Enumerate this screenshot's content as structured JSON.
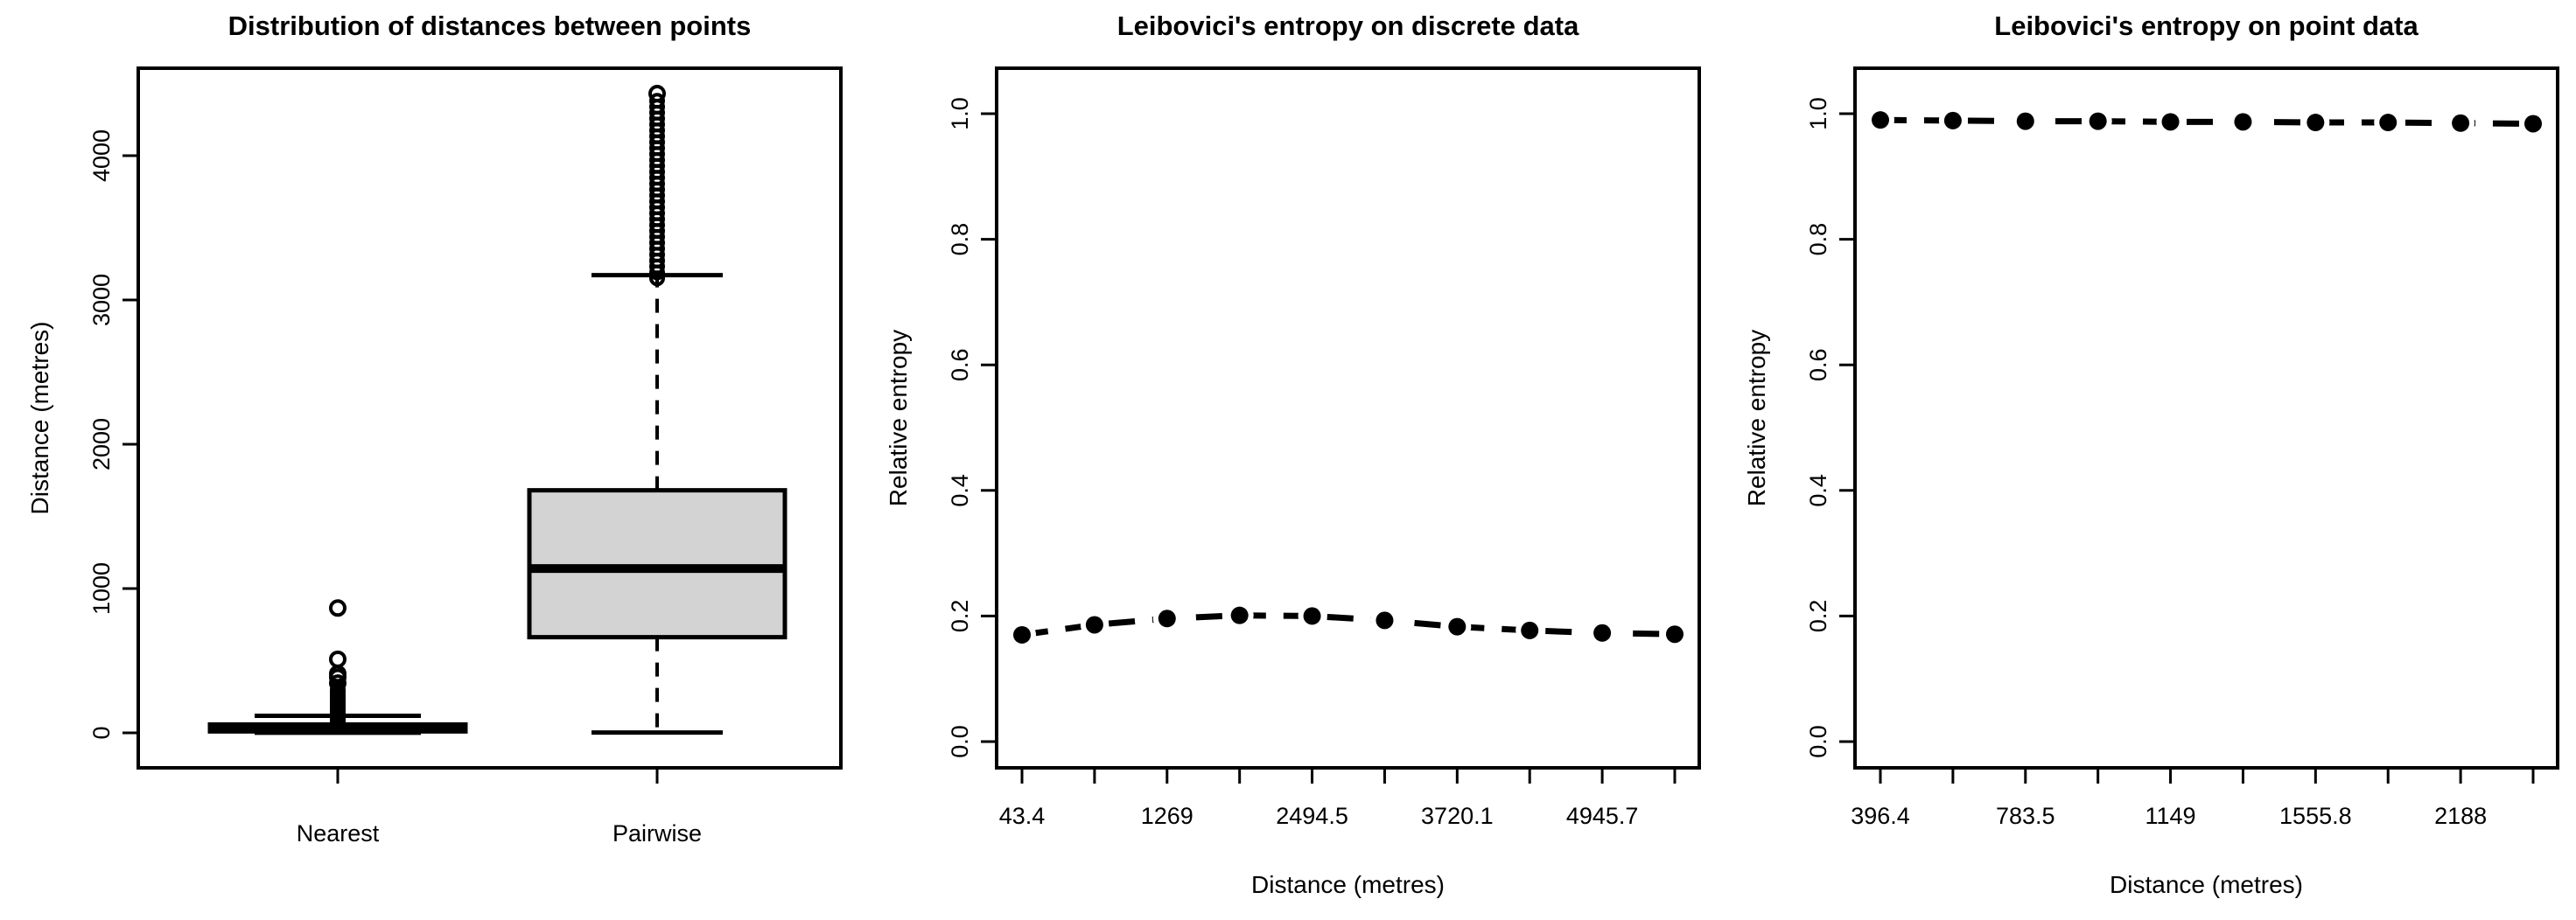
{
  "figure": {
    "background": "#ffffff",
    "foreground": "#000000",
    "box_fill": "#d3d3d3"
  },
  "chart_data": [
    {
      "type": "boxplot",
      "title": "Distribution of distances between points",
      "xlabel": "",
      "ylabel": "Distance (metres)",
      "categories": [
        "Nearest",
        "Pairwise"
      ],
      "ylim": [
        0,
        4460
      ],
      "yticks": [
        0,
        1000,
        2000,
        3000,
        4000
      ],
      "ytick_labels": [
        "0",
        "1000",
        "2000",
        "3000",
        "4000"
      ],
      "grid": false,
      "boxes": [
        {
          "category": "Nearest",
          "min": 1,
          "q1": 10,
          "median": 30,
          "q3": 58,
          "whisker_high": 118,
          "outlier_band": [
            60,
            300
          ],
          "outliers": [
            345,
            385,
            410,
            510,
            865
          ]
        },
        {
          "category": "Pairwise",
          "min": 2,
          "q1": 663,
          "median": 1139,
          "q3": 1681,
          "whisker_high": 3172,
          "outlier_band": [
            3150,
            4380
          ],
          "outliers": [
            4430
          ]
        }
      ]
    },
    {
      "type": "line",
      "title": "Leibovici's entropy on discrete data",
      "xlabel": "Distance (metres)",
      "ylabel": "Relative entropy",
      "x": [
        43.4,
        656.2,
        1269,
        1881.7,
        2494.5,
        3107.3,
        3720.1,
        4332.9,
        4945.7,
        5558.5
      ],
      "x_tick_labels": [
        "43.4",
        "",
        "1269",
        "",
        "2494.5",
        "",
        "3720.1",
        "",
        "4945.7",
        ""
      ],
      "y": [
        0.17,
        0.186,
        0.196,
        0.201,
        0.2,
        0.193,
        0.183,
        0.177,
        0.173,
        0.171
      ],
      "ylim": [
        0,
        1
      ],
      "yticks": [
        0.0,
        0.2,
        0.4,
        0.6,
        0.8,
        1.0
      ],
      "ytick_labels": [
        "0.0",
        "0.2",
        "0.4",
        "0.6",
        "0.8",
        "1.0"
      ],
      "line_style": "dashed",
      "marker": "filled-circle",
      "grid": false,
      "legend": "none"
    },
    {
      "type": "line",
      "title": "Leibovici's entropy on point data",
      "xlabel": "Distance (metres)",
      "ylabel": "Relative entropy",
      "x_tick_labels": [
        "396.4",
        "",
        "783.5",
        "",
        "1149",
        "",
        "1555.8",
        "",
        "2188",
        ""
      ],
      "y": [
        0.99,
        0.989,
        0.988,
        0.988,
        0.987,
        0.987,
        0.986,
        0.986,
        0.985,
        0.984
      ],
      "ylim": [
        0,
        1
      ],
      "yticks": [
        0.0,
        0.2,
        0.4,
        0.6,
        0.8,
        1.0
      ],
      "ytick_labels": [
        "0.0",
        "0.2",
        "0.4",
        "0.6",
        "0.8",
        "1.0"
      ],
      "line_style": "dashed",
      "marker": "filled-circle",
      "grid": false,
      "legend": "none"
    }
  ]
}
